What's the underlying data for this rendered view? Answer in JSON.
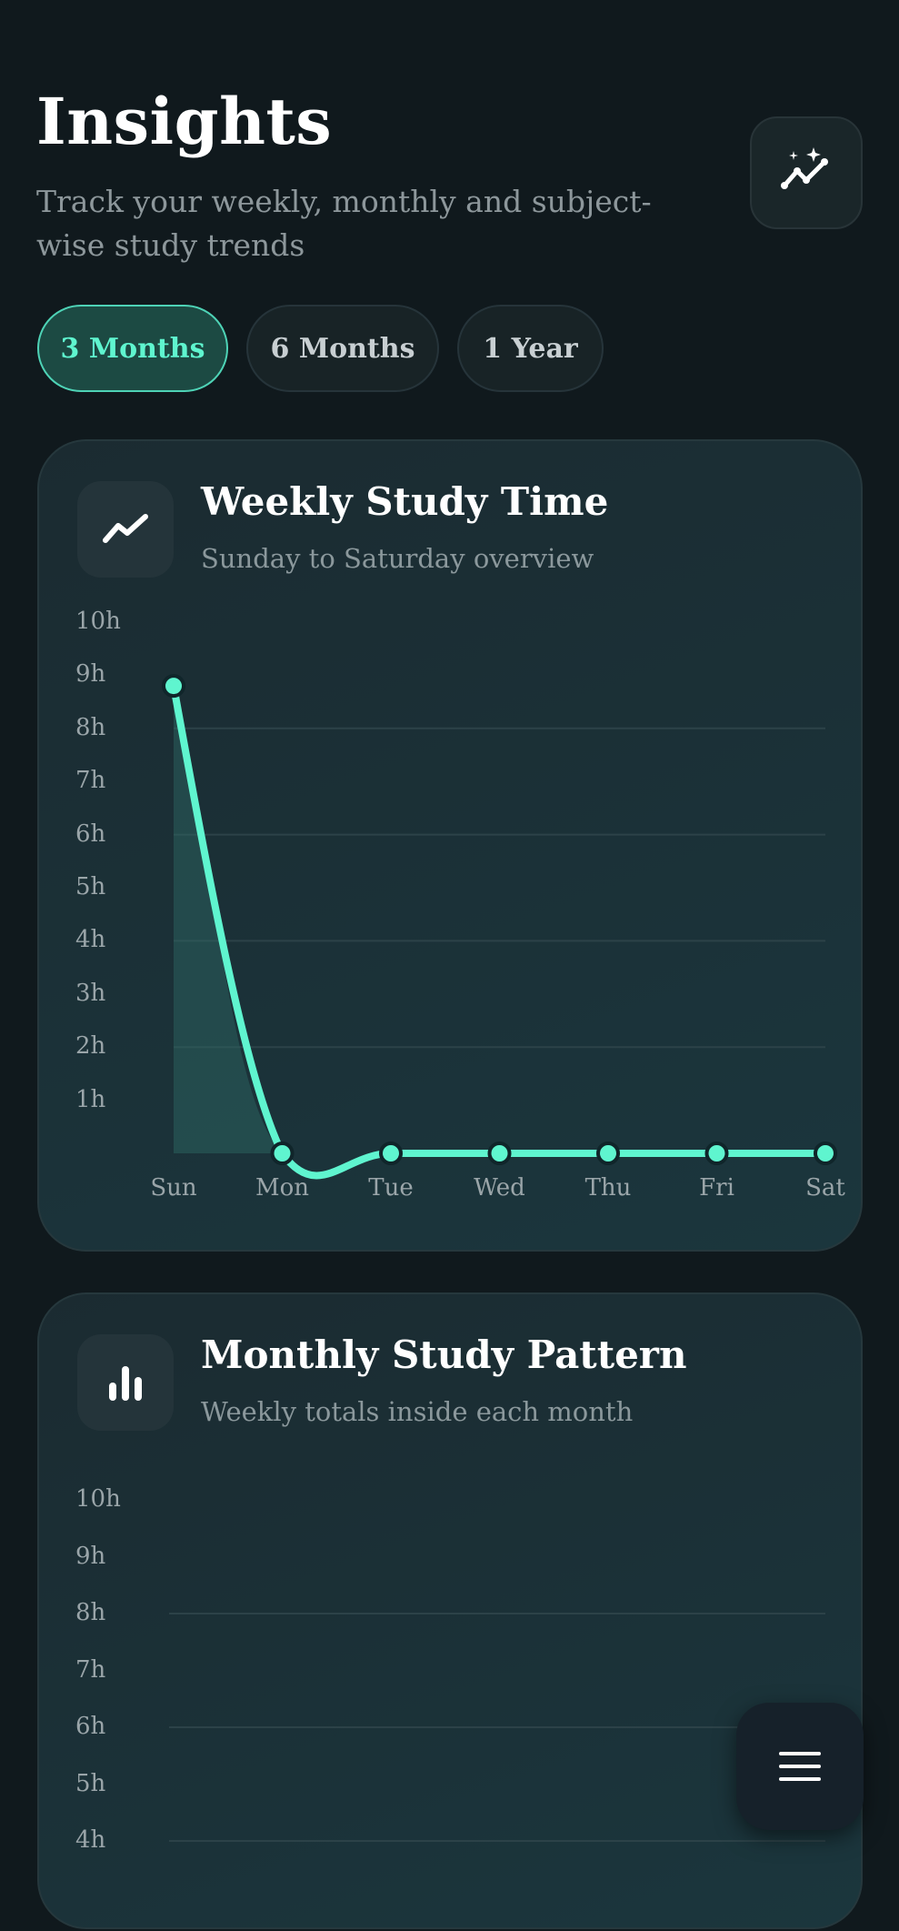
{
  "header": {
    "title": "Insights",
    "subtitle": "Track your weekly, monthly and subject-wise study trends",
    "action_icon": "sparkle-trend-icon"
  },
  "range_chips": [
    {
      "label": "3 Months",
      "active": true
    },
    {
      "label": "6 Months",
      "active": false
    },
    {
      "label": "1 Year",
      "active": false
    }
  ],
  "weekly_card": {
    "title": "Weekly Study Time",
    "subtitle": "Sunday to Saturday overview",
    "icon": "trend-line-icon"
  },
  "monthly_card": {
    "title": "Monthly Study Pattern",
    "subtitle": "Weekly totals inside each month",
    "icon": "bar-chart-icon"
  },
  "fab": {
    "icon": "menu-icon"
  },
  "colors": {
    "accent": "#5ff5cf",
    "background": "#10191d",
    "card": "#1b2f35"
  },
  "chart_data": [
    {
      "type": "line",
      "categories": [
        "Sun",
        "Mon",
        "Tue",
        "Wed",
        "Thu",
        "Fri",
        "Sat"
      ],
      "values": [
        8.8,
        0,
        0,
        0,
        0,
        0,
        0
      ],
      "yticks": [
        "10h",
        "9h",
        "8h",
        "7h",
        "6h",
        "5h",
        "4h",
        "3h",
        "2h",
        "1h"
      ],
      "ylim": [
        0,
        10
      ],
      "grid": true
    },
    {
      "type": "bar",
      "yticks": [
        "10h",
        "9h",
        "8h",
        "7h",
        "6h",
        "5h",
        "4h"
      ],
      "ylim": [
        0,
        10
      ],
      "grid": true
    }
  ]
}
